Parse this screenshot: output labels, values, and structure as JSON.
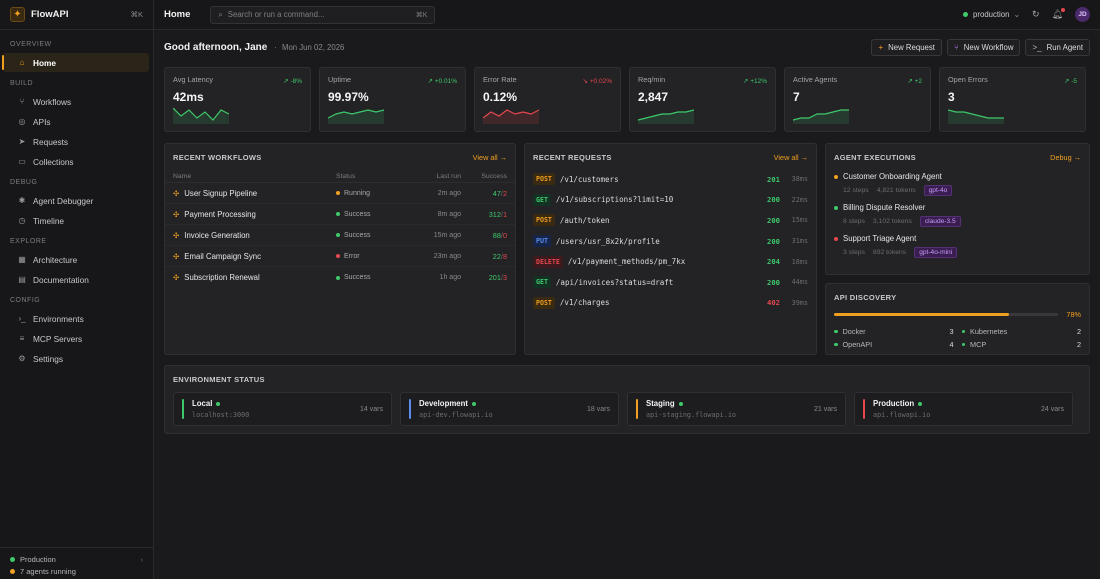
{
  "brand": {
    "name": "FlowAPI",
    "shortcut": "⌘K"
  },
  "sidebar": {
    "sections": [
      {
        "label": "Overview",
        "items": [
          {
            "label": "Home",
            "icon": "home-icon",
            "active": true
          }
        ]
      },
      {
        "label": "Build",
        "items": [
          {
            "label": "Workflows",
            "icon": "workflow-icon"
          },
          {
            "label": "APIs",
            "icon": "globe-icon"
          },
          {
            "label": "Requests",
            "icon": "send-icon"
          },
          {
            "label": "Collections",
            "icon": "folder-icon"
          }
        ]
      },
      {
        "label": "Debug",
        "items": [
          {
            "label": "Agent Debugger",
            "icon": "bug-icon"
          },
          {
            "label": "Timeline",
            "icon": "clock-icon"
          }
        ]
      },
      {
        "label": "Explore",
        "items": [
          {
            "label": "Architecture",
            "icon": "architecture-icon"
          },
          {
            "label": "Documentation",
            "icon": "book-icon"
          }
        ]
      },
      {
        "label": "Config",
        "items": [
          {
            "label": "Environments",
            "icon": "terminal-icon"
          },
          {
            "label": "MCP Servers",
            "icon": "server-icon"
          },
          {
            "label": "Settings",
            "icon": "gear-icon"
          }
        ]
      }
    ],
    "footer": {
      "env": "Production",
      "agents": "7 agents running"
    }
  },
  "topbar": {
    "title": "Home",
    "search_placeholder": "Search or run a command...",
    "search_shortcut": "⌘K",
    "env": "production",
    "avatar": "JD"
  },
  "greeting": {
    "text": "Good afternoon, Jane",
    "date": "Mon Jun 02, 2026"
  },
  "actions": {
    "new_request": "New Request",
    "new_workflow": "New Workflow",
    "run_agent": "Run Agent"
  },
  "metrics": [
    {
      "label": "Avg Latency",
      "value": "42ms",
      "delta": "-8%",
      "trend": "up",
      "color": "#3ec96b"
    },
    {
      "label": "Uptime",
      "value": "99.97%",
      "delta": "+0.01%",
      "trend": "up",
      "color": "#3ec96b"
    },
    {
      "label": "Error Rate",
      "value": "0.12%",
      "delta": "+0.02%",
      "trend": "down",
      "color": "#e5484d"
    },
    {
      "label": "Req/min",
      "value": "2,847",
      "delta": "+12%",
      "trend": "up",
      "color": "#3ec96b"
    },
    {
      "label": "Active Agents",
      "value": "7",
      "delta": "+2",
      "trend": "up",
      "color": "#3ec96b"
    },
    {
      "label": "Open Errors",
      "value": "3",
      "delta": "-5",
      "trend": "up",
      "color": "#3ec96b"
    }
  ],
  "workflows": {
    "title": "Recent Workflows",
    "view_all": "View all →",
    "headers": {
      "name": "Name",
      "status": "Status",
      "last_run": "Last run",
      "success": "Success"
    },
    "rows": [
      {
        "name": "User Signup Pipeline",
        "status": "Running",
        "state": "running",
        "last": "2m ago",
        "ok": "47",
        "fail": "2"
      },
      {
        "name": "Payment Processing",
        "status": "Success",
        "state": "success",
        "last": "8m ago",
        "ok": "312",
        "fail": "1"
      },
      {
        "name": "Invoice Generation",
        "status": "Success",
        "state": "success",
        "last": "15m ago",
        "ok": "88",
        "fail": "0"
      },
      {
        "name": "Email Campaign Sync",
        "status": "Error",
        "state": "error",
        "last": "23m ago",
        "ok": "22",
        "fail": "8"
      },
      {
        "name": "Subscription Renewal",
        "status": "Success",
        "state": "success",
        "last": "1h ago",
        "ok": "201",
        "fail": "3"
      }
    ]
  },
  "requests": {
    "title": "Recent Requests",
    "view_all": "View all →",
    "rows": [
      {
        "method": "POST",
        "path": "/v1/customers",
        "code": "201",
        "time": "38ms"
      },
      {
        "method": "GET",
        "path": "/v1/subscriptions?limit=10",
        "code": "200",
        "time": "22ms"
      },
      {
        "method": "POST",
        "path": "/auth/token",
        "code": "200",
        "time": "15ms"
      },
      {
        "method": "PUT",
        "path": "/users/usr_8x2k/profile",
        "code": "200",
        "time": "31ms"
      },
      {
        "method": "DELETE",
        "path": "/v1/payment_methods/pm_7kx",
        "code": "204",
        "time": "18ms"
      },
      {
        "method": "GET",
        "path": "/api/invoices?status=draft",
        "code": "200",
        "time": "44ms"
      },
      {
        "method": "POST",
        "path": "/v1/charges",
        "code": "402",
        "time": "39ms"
      }
    ]
  },
  "agents": {
    "title": "Agent Executions",
    "debug": "Debug →",
    "rows": [
      {
        "name": "Customer Onboarding Agent",
        "state": "running",
        "steps": "12 steps",
        "tokens": "4,821 tokens",
        "model": "gpt-4o"
      },
      {
        "name": "Billing Dispute Resolver",
        "state": "success",
        "steps": "8 steps",
        "tokens": "3,102 tokens",
        "model": "claude-3.5"
      },
      {
        "name": "Support Triage Agent",
        "state": "error",
        "steps": "3 steps",
        "tokens": "892 tokens",
        "model": "gpt-4o-mini"
      }
    ]
  },
  "discovery": {
    "title": "API Discovery",
    "percent": "78%",
    "fill": 0.78,
    "items": [
      {
        "label": "Docker",
        "count": "3"
      },
      {
        "label": "Kubernetes",
        "count": "2"
      },
      {
        "label": "OpenAPI",
        "count": "4"
      },
      {
        "label": "MCP",
        "count": "2"
      }
    ]
  },
  "environments": {
    "title": "Environment Status",
    "rows": [
      {
        "name": "Local",
        "url": "localhost:3000",
        "vars": "14 vars",
        "color": "#3ec96b"
      },
      {
        "name": "Development",
        "url": "api-dev.flowapi.io",
        "vars": "18 vars",
        "color": "#5b8def"
      },
      {
        "name": "Staging",
        "url": "api-staging.flowapi.io",
        "vars": "21 vars",
        "color": "#f0a020"
      },
      {
        "name": "Production",
        "url": "api.flowapi.io",
        "vars": "24 vars",
        "color": "#e5484d"
      }
    ]
  }
}
